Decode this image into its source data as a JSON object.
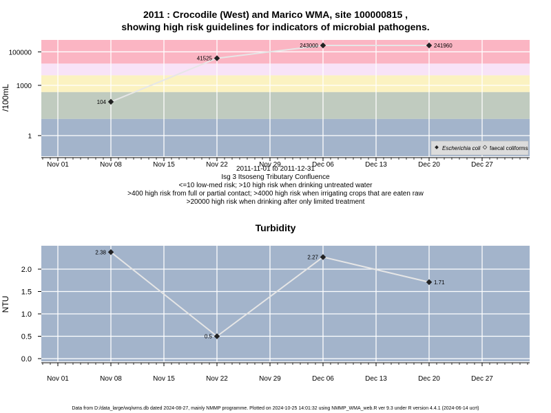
{
  "title_line1": "2011 : Crocodile (West) and Marico WMA, site 100000815 ,",
  "title_line2": "showing high risk guidelines for indicators of microbial pathogens.",
  "captions": [
    "2011-11-01 to 2011-12-31",
    "Isg 3 Itsoseng Tributary Confluence",
    "<=10 low-med risk; >10 high risk when drinking untreated water",
    ">400 high risk from full or partial contact; >4000 high risk when irrigating crops that are eaten raw",
    ">20000 high risk when drinking after only limited treatment"
  ],
  "footer": "Data from D:/data_large/wq/wms.db dated 2024-08-27, mainly NMMP programme. Plotted on 2024-10-25 14:01:32 using NMMP_WMA_web.R ver 9.3 under R version 4.4.1 (2024-06-14 ucrt)",
  "colors": {
    "band_low": "#a3b4cb",
    "band_10": "#c0cbbf",
    "band_400": "#fbf2c1",
    "band_4000": "#f8e3f7",
    "band_20000": "#fbb5c3",
    "turbidity_bg": "#a3b4cb",
    "line": "#e6e6e6",
    "point": "#222222"
  },
  "chart_data": [
    {
      "type": "line",
      "title": "",
      "ylabel": "/100mL",
      "yscale": "log",
      "x_tick_labels": [
        "Nov 01",
        "Nov 08",
        "Nov 15",
        "Nov 22",
        "Nov 29",
        "Dec 06",
        "Dec 13",
        "Dec 20",
        "Dec 27"
      ],
      "x_ticks": [
        "2011-11-01",
        "2011-11-08",
        "2011-11-15",
        "2011-11-22",
        "2011-11-29",
        "2011-12-06",
        "2011-12-13",
        "2011-12-20",
        "2011-12-27"
      ],
      "y_ticks": [
        1,
        1000,
        100000
      ],
      "y_tick_labels": [
        "1",
        "1000",
        "100000"
      ],
      "risk_thresholds": [
        10,
        400,
        4000,
        20000
      ],
      "series": [
        {
          "name": "Escherichia coli",
          "x": [
            "2011-11-08",
            "2011-11-22",
            "2011-12-06",
            "2011-12-20"
          ],
          "values": [
            104,
            41525,
            243000,
            241960
          ],
          "labels": [
            "104",
            "41525",
            "243000",
            "241960"
          ]
        }
      ],
      "legend": {
        "position": "bottom-right",
        "entries": [
          "Escherichia coli",
          "faecal coliforms"
        ]
      }
    },
    {
      "type": "line",
      "title": "Turbidity",
      "ylabel": "NTU",
      "x_tick_labels": [
        "Nov 01",
        "Nov 08",
        "Nov 15",
        "Nov 22",
        "Nov 29",
        "Dec 06",
        "Dec 13",
        "Dec 20",
        "Dec 27"
      ],
      "x_ticks": [
        "2011-11-01",
        "2011-11-08",
        "2011-11-15",
        "2011-11-22",
        "2011-11-29",
        "2011-12-06",
        "2011-12-13",
        "2011-12-20",
        "2011-12-27"
      ],
      "y_ticks": [
        0.0,
        0.5,
        1.0,
        1.5,
        2.0
      ],
      "y_tick_labels": [
        "0.0",
        "0.5",
        "1.0",
        "1.5",
        "2.0"
      ],
      "series": [
        {
          "x": [
            "2011-11-08",
            "2011-11-22",
            "2011-12-06",
            "2011-12-20"
          ],
          "values": [
            2.38,
            0.5,
            2.27,
            1.71
          ],
          "labels": [
            "2.38",
            "0.5",
            "2.27",
            "1.71"
          ]
        }
      ]
    }
  ]
}
